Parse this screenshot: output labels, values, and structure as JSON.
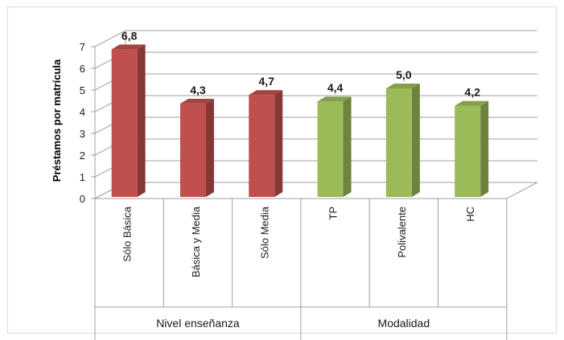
{
  "chart_data": {
    "type": "bar",
    "ylabel": "Préstamos por matrícula",
    "ylim": [
      0,
      7
    ],
    "yticks": [
      "0",
      "1",
      "2",
      "3",
      "4",
      "5",
      "6",
      "7"
    ],
    "grid": true,
    "categories": [
      "Sólo Básica",
      "Básica y Media",
      "Sólo Media",
      "TP",
      "Polivalente",
      "HC"
    ],
    "values": [
      6.8,
      4.3,
      4.7,
      4.4,
      5.0,
      4.2
    ],
    "data_labels": [
      "6,8",
      "4,3",
      "4,7",
      "4,4",
      "5,0",
      "4,2"
    ],
    "groups": [
      {
        "name": "Nivel enseñanza",
        "span": 3,
        "color": "#c0504d"
      },
      {
        "name": "Modalidad",
        "span": 3,
        "color": "#9bbb59"
      }
    ]
  }
}
